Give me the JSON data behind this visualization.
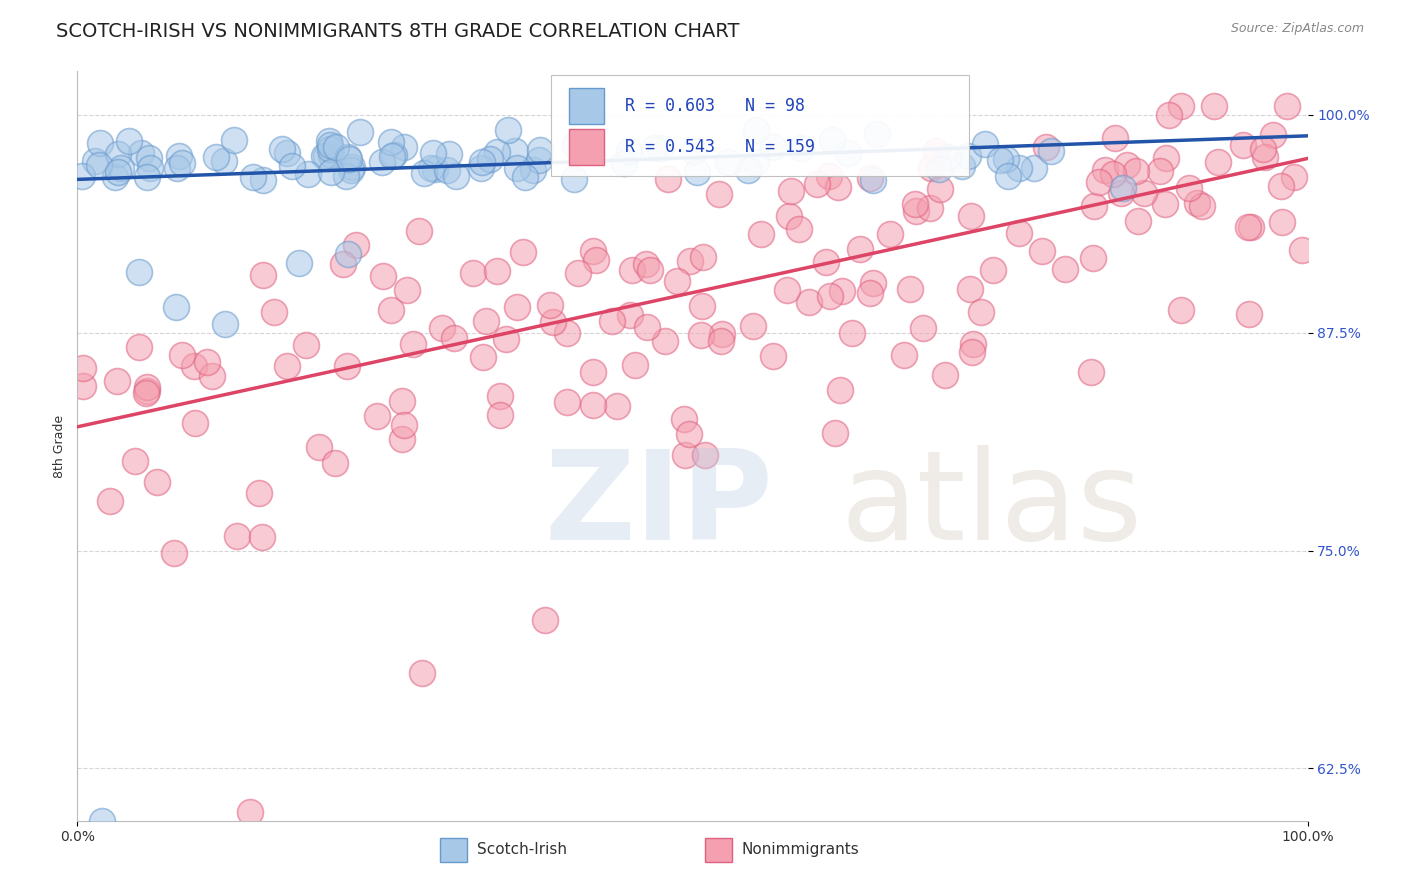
{
  "title": "SCOTCH-IRISH VS NONIMMIGRANTS 8TH GRADE CORRELATION CHART",
  "source": "Source: ZipAtlas.com",
  "ylabel": "8th Grade",
  "xlim": [
    0.0,
    1.0
  ],
  "ylim": [
    0.595,
    1.025
  ],
  "yticks": [
    0.625,
    0.75,
    0.875,
    1.0
  ],
  "ytick_labels": [
    "62.5%",
    "75.0%",
    "87.5%",
    "100.0%"
  ],
  "xtick_labels": [
    "0.0%",
    "100.0%"
  ],
  "xticks": [
    0.0,
    1.0
  ],
  "blue_R": 0.603,
  "blue_N": 98,
  "pink_R": 0.543,
  "pink_N": 159,
  "blue_color": "#a8c8e8",
  "pink_color": "#f4a0b0",
  "blue_edge_color": "#6699cc",
  "pink_edge_color": "#e06080",
  "blue_line_color": "#2255aa",
  "pink_line_color": "#dd4466",
  "legend_label_blue": "Scotch-Irish",
  "legend_label_pink": "Nonimmigrants",
  "background_color": "#ffffff",
  "grid_color": "#cccccc",
  "title_fontsize": 14,
  "axis_label_fontsize": 9,
  "tick_fontsize": 10,
  "source_fontsize": 9,
  "seed": 12
}
